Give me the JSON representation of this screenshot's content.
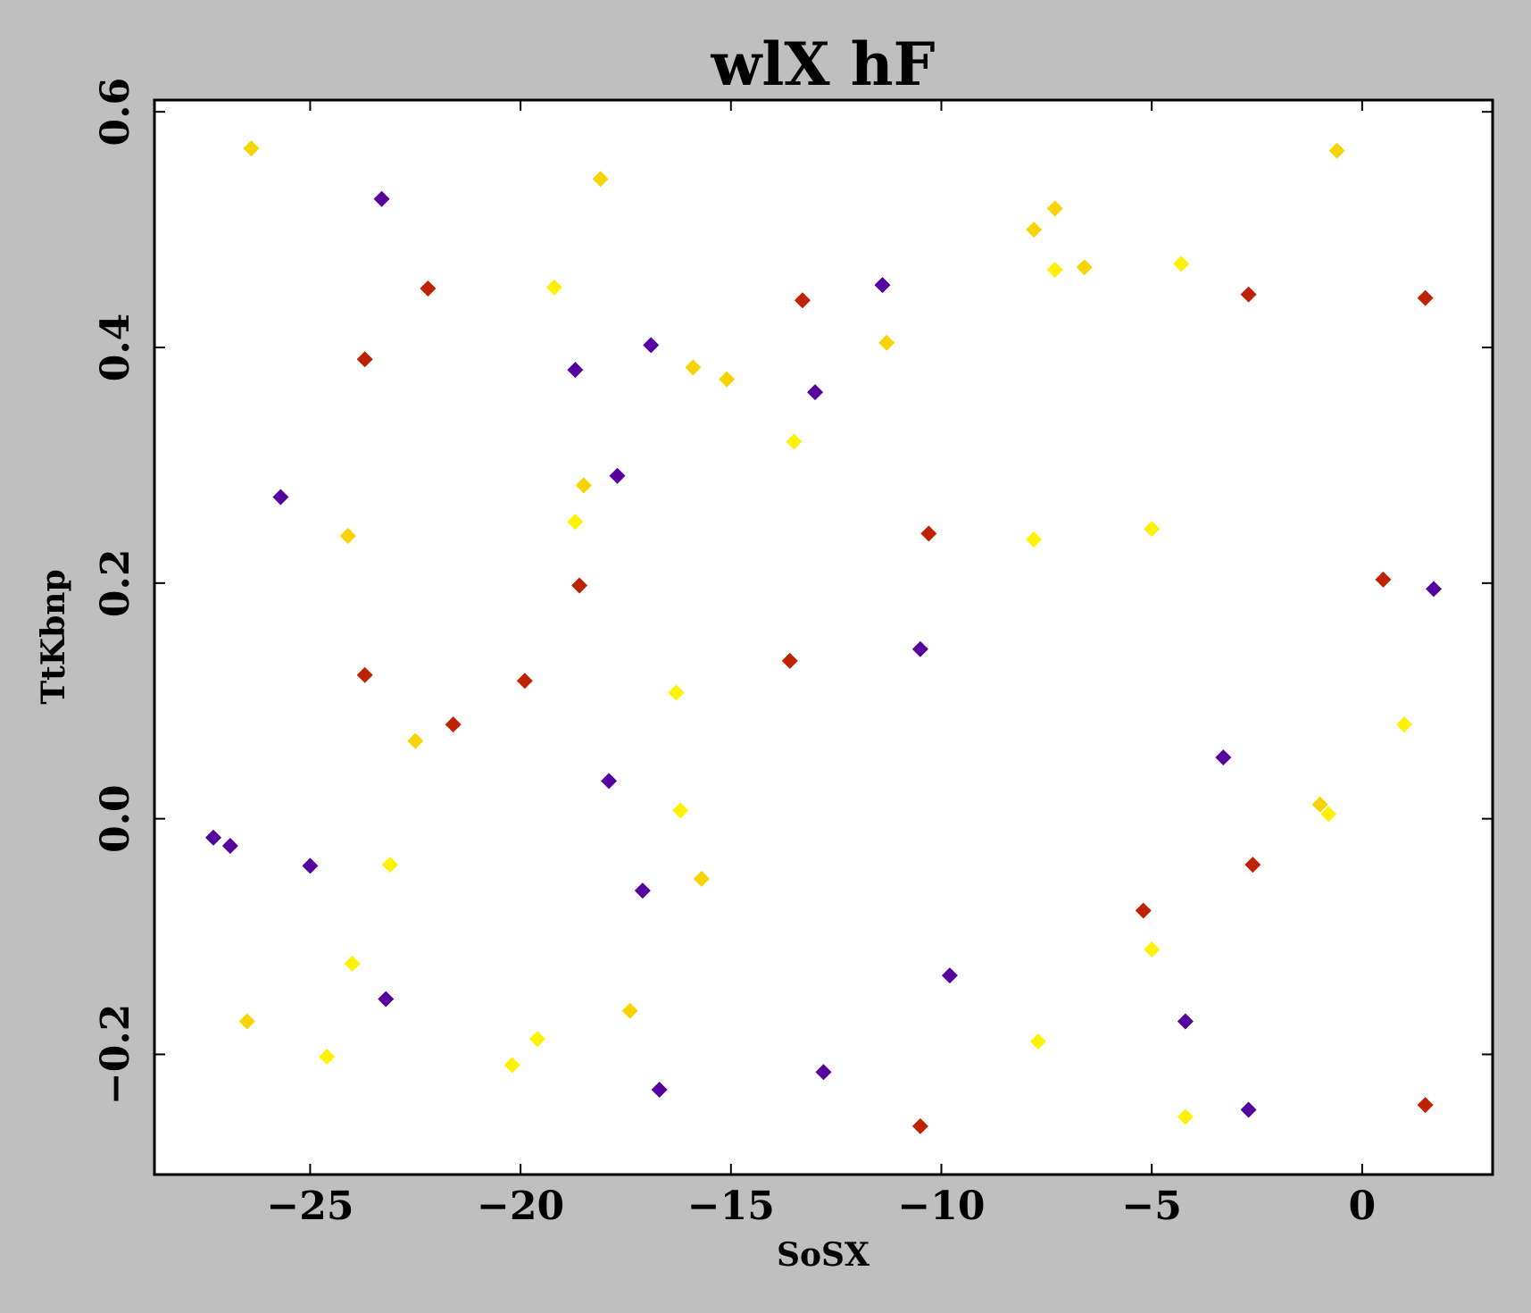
{
  "chart_data": {
    "type": "scatter",
    "title": "wlX hF",
    "xlabel": "SoSX",
    "ylabel": "TtKbnp",
    "xlim": [
      -28.7,
      3.1
    ],
    "ylim": [
      -0.302,
      0.61
    ],
    "xticks": [
      -25,
      -20,
      -15,
      -10,
      -5,
      0
    ],
    "xtick_labels": [
      "−25",
      "−20",
      "−15",
      "−10",
      "−5",
      "0"
    ],
    "yticks": [
      -0.2,
      0.0,
      0.2,
      0.4,
      0.6
    ],
    "ytick_labels": [
      "−0.2",
      "0.0",
      "0.2",
      "0.4",
      "0.6"
    ],
    "grid": false,
    "marker": "diamond",
    "background": "#bfbfbf",
    "plot_background": "#ffffff",
    "points": [
      {
        "x": -26.4,
        "y": 0.569,
        "color": "#f7d400"
      },
      {
        "x": -23.3,
        "y": 0.526,
        "color": "#55009f"
      },
      {
        "x": -18.1,
        "y": 0.543,
        "color": "#f7d400"
      },
      {
        "x": -0.6,
        "y": 0.567,
        "color": "#f7d400"
      },
      {
        "x": -22.2,
        "y": 0.45,
        "color": "#bf2200"
      },
      {
        "x": -19.2,
        "y": 0.451,
        "color": "#fff200"
      },
      {
        "x": -13.3,
        "y": 0.44,
        "color": "#bf2200"
      },
      {
        "x": -11.4,
        "y": 0.453,
        "color": "#55009f"
      },
      {
        "x": -7.8,
        "y": 0.5,
        "color": "#f7d400"
      },
      {
        "x": -7.3,
        "y": 0.518,
        "color": "#f7d400"
      },
      {
        "x": -7.3,
        "y": 0.466,
        "color": "#fff200"
      },
      {
        "x": -6.6,
        "y": 0.468,
        "color": "#f7d400"
      },
      {
        "x": -4.3,
        "y": 0.471,
        "color": "#fff200"
      },
      {
        "x": -2.7,
        "y": 0.445,
        "color": "#bf2200"
      },
      {
        "x": 1.5,
        "y": 0.442,
        "color": "#bf2200"
      },
      {
        "x": -23.7,
        "y": 0.39,
        "color": "#bf2200"
      },
      {
        "x": -18.7,
        "y": 0.381,
        "color": "#55009f"
      },
      {
        "x": -16.9,
        "y": 0.402,
        "color": "#55009f"
      },
      {
        "x": -15.9,
        "y": 0.383,
        "color": "#f7d400"
      },
      {
        "x": -15.1,
        "y": 0.373,
        "color": "#f7d400"
      },
      {
        "x": -11.3,
        "y": 0.404,
        "color": "#f7d400"
      },
      {
        "x": -13.0,
        "y": 0.362,
        "color": "#55009f"
      },
      {
        "x": -13.5,
        "y": 0.32,
        "color": "#fff200"
      },
      {
        "x": -25.7,
        "y": 0.273,
        "color": "#55009f"
      },
      {
        "x": -24.1,
        "y": 0.24,
        "color": "#f7d400"
      },
      {
        "x": -18.5,
        "y": 0.283,
        "color": "#f7d400"
      },
      {
        "x": -18.7,
        "y": 0.252,
        "color": "#fff200"
      },
      {
        "x": -17.7,
        "y": 0.291,
        "color": "#55009f"
      },
      {
        "x": -10.3,
        "y": 0.242,
        "color": "#bf2200"
      },
      {
        "x": -7.8,
        "y": 0.237,
        "color": "#fff200"
      },
      {
        "x": -5.0,
        "y": 0.246,
        "color": "#fff200"
      },
      {
        "x": -18.6,
        "y": 0.198,
        "color": "#bf2200"
      },
      {
        "x": 0.5,
        "y": 0.203,
        "color": "#bf2200"
      },
      {
        "x": 1.7,
        "y": 0.195,
        "color": "#55009f"
      },
      {
        "x": -23.7,
        "y": 0.122,
        "color": "#bf2200"
      },
      {
        "x": -19.9,
        "y": 0.117,
        "color": "#bf2200"
      },
      {
        "x": -13.6,
        "y": 0.134,
        "color": "#bf2200"
      },
      {
        "x": -10.5,
        "y": 0.144,
        "color": "#55009f"
      },
      {
        "x": -16.3,
        "y": 0.107,
        "color": "#fff200"
      },
      {
        "x": -21.6,
        "y": 0.08,
        "color": "#bf2200"
      },
      {
        "x": -22.5,
        "y": 0.066,
        "color": "#f7d400"
      },
      {
        "x": 1.0,
        "y": 0.08,
        "color": "#fff200"
      },
      {
        "x": -3.3,
        "y": 0.052,
        "color": "#55009f"
      },
      {
        "x": -17.9,
        "y": 0.032,
        "color": "#55009f"
      },
      {
        "x": -16.2,
        "y": 0.007,
        "color": "#fff200"
      },
      {
        "x": -1.0,
        "y": 0.012,
        "color": "#f7d400"
      },
      {
        "x": -0.8,
        "y": 0.004,
        "color": "#fff200"
      },
      {
        "x": -27.3,
        "y": -0.016,
        "color": "#55009f"
      },
      {
        "x": -26.9,
        "y": -0.023,
        "color": "#55009f"
      },
      {
        "x": -25.0,
        "y": -0.04,
        "color": "#55009f"
      },
      {
        "x": -23.1,
        "y": -0.039,
        "color": "#fff200"
      },
      {
        "x": -15.7,
        "y": -0.051,
        "color": "#f7d400"
      },
      {
        "x": -17.1,
        "y": -0.061,
        "color": "#55009f"
      },
      {
        "x": -2.6,
        "y": -0.039,
        "color": "#bf2200"
      },
      {
        "x": -5.2,
        "y": -0.078,
        "color": "#bf2200"
      },
      {
        "x": -24.0,
        "y": -0.123,
        "color": "#fff200"
      },
      {
        "x": -9.8,
        "y": -0.133,
        "color": "#55009f"
      },
      {
        "x": -5.0,
        "y": -0.111,
        "color": "#fff200"
      },
      {
        "x": -23.2,
        "y": -0.153,
        "color": "#55009f"
      },
      {
        "x": -17.4,
        "y": -0.163,
        "color": "#f7d400"
      },
      {
        "x": -26.5,
        "y": -0.172,
        "color": "#f7d400"
      },
      {
        "x": -4.2,
        "y": -0.172,
        "color": "#55009f"
      },
      {
        "x": -24.6,
        "y": -0.202,
        "color": "#fff200"
      },
      {
        "x": -19.6,
        "y": -0.187,
        "color": "#fff200"
      },
      {
        "x": -7.7,
        "y": -0.189,
        "color": "#fff200"
      },
      {
        "x": -20.2,
        "y": -0.209,
        "color": "#fff200"
      },
      {
        "x": -12.8,
        "y": -0.215,
        "color": "#55009f"
      },
      {
        "x": -16.7,
        "y": -0.23,
        "color": "#55009f"
      },
      {
        "x": -2.7,
        "y": -0.247,
        "color": "#55009f"
      },
      {
        "x": 1.5,
        "y": -0.243,
        "color": "#bf2200"
      },
      {
        "x": -4.2,
        "y": -0.253,
        "color": "#fff200"
      },
      {
        "x": -10.5,
        "y": -0.261,
        "color": "#bf2200"
      }
    ]
  }
}
